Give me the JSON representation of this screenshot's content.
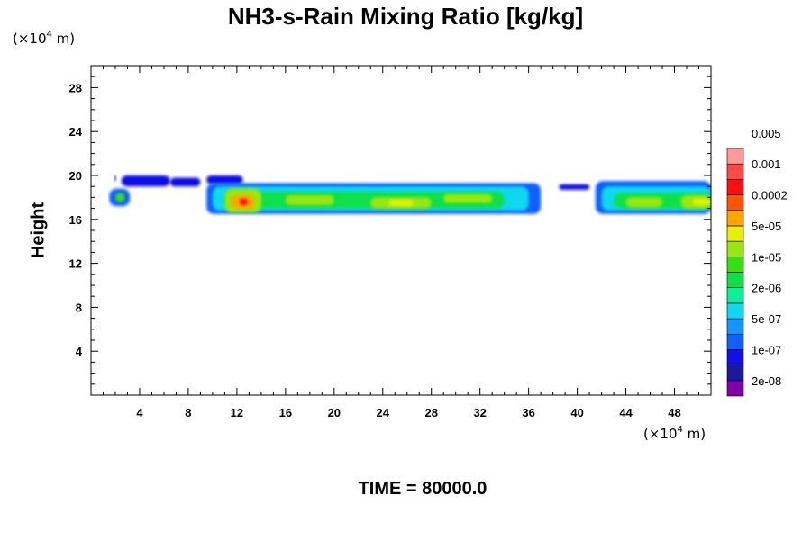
{
  "chart_data": {
    "type": "heatmap",
    "title": "NH3-s-Rain Mixing Ratio [kg/kg]",
    "ylabel": "Height",
    "y_unit": {
      "prefix": "(×10",
      "exp": "4",
      "suffix": " m)"
    },
    "x_unit": {
      "prefix": "(×10",
      "exp": "4",
      "suffix": " m)"
    },
    "x_ticks": [
      4,
      8,
      12,
      16,
      20,
      24,
      28,
      32,
      36,
      40,
      44,
      48
    ],
    "y_ticks": [
      4,
      8,
      12,
      16,
      20,
      24,
      28
    ],
    "xlim": [
      0,
      51
    ],
    "ylim": [
      0,
      30
    ],
    "grid": false,
    "colorbar": {
      "colors": [
        "#7f00aa",
        "#1a1aa0",
        "#1010e8",
        "#1060ff",
        "#1496ff",
        "#10d8ee",
        "#10ee9a",
        "#10e04a",
        "#36e010",
        "#9ae610",
        "#e6f000",
        "#ffa400",
        "#ff5500",
        "#ff1010",
        "#ff4848",
        "#ff9a9a"
      ],
      "labels": [
        "2e-08",
        "1e-07",
        "5e-07",
        "2e-06",
        "1e-05",
        "5e-05",
        "0.0002",
        "0.001",
        "0.005"
      ]
    },
    "regions": [
      {
        "x0": 1.9,
        "x1": 2.1,
        "y0": 19.5,
        "y1": 20.0,
        "level": 2
      },
      {
        "x0": 2.5,
        "x1": 6.5,
        "y0": 19.0,
        "y1": 20.0,
        "level": 2
      },
      {
        "x0": 6.5,
        "x1": 9.0,
        "y0": 19.0,
        "y1": 19.8,
        "level": 2
      },
      {
        "x0": 9.5,
        "x1": 12.5,
        "y0": 19.2,
        "y1": 20.0,
        "level": 2
      },
      {
        "x0": 1.5,
        "x1": 3.2,
        "y0": 17.2,
        "y1": 18.8,
        "level": 3
      },
      {
        "x0": 2.0,
        "x1": 2.8,
        "y0": 17.6,
        "y1": 18.4,
        "level": 8
      },
      {
        "x0": 9.5,
        "x1": 37.0,
        "y0": 16.5,
        "y1": 19.3,
        "level": 3
      },
      {
        "x0": 10.0,
        "x1": 36.0,
        "y0": 16.8,
        "y1": 19.0,
        "level": 5
      },
      {
        "x0": 11.0,
        "x1": 34.0,
        "y0": 17.0,
        "y1": 18.5,
        "level": 7
      },
      {
        "x0": 11.0,
        "x1": 14.0,
        "y0": 16.6,
        "y1": 18.8,
        "level": 9
      },
      {
        "x0": 11.5,
        "x1": 13.5,
        "y0": 17.0,
        "y1": 18.2,
        "level": 11
      },
      {
        "x0": 12.2,
        "x1": 12.9,
        "y0": 17.3,
        "y1": 17.9,
        "level": 13
      },
      {
        "x0": 16.0,
        "x1": 20.0,
        "y0": 17.3,
        "y1": 18.2,
        "level": 9
      },
      {
        "x0": 23.0,
        "x1": 28.0,
        "y0": 17.0,
        "y1": 18.0,
        "level": 9
      },
      {
        "x0": 24.5,
        "x1": 26.5,
        "y0": 17.2,
        "y1": 17.8,
        "level": 10
      },
      {
        "x0": 29.0,
        "x1": 33.0,
        "y0": 17.5,
        "y1": 18.3,
        "level": 9
      },
      {
        "x0": 38.5,
        "x1": 41.0,
        "y0": 18.7,
        "y1": 19.2,
        "level": 2
      },
      {
        "x0": 41.5,
        "x1": 51.0,
        "y0": 16.5,
        "y1": 19.5,
        "level": 3
      },
      {
        "x0": 42.0,
        "x1": 51.0,
        "y0": 16.8,
        "y1": 19.0,
        "level": 5
      },
      {
        "x0": 43.0,
        "x1": 51.0,
        "y0": 17.0,
        "y1": 18.4,
        "level": 7
      },
      {
        "x0": 44.0,
        "x1": 47.0,
        "y0": 17.1,
        "y1": 18.0,
        "level": 9
      },
      {
        "x0": 48.5,
        "x1": 51.0,
        "y0": 17.0,
        "y1": 18.2,
        "level": 9
      },
      {
        "x0": 49.5,
        "x1": 51.0,
        "y0": 17.3,
        "y1": 17.9,
        "level": 10
      }
    ]
  },
  "footer": {
    "time": "TIME = 80000.0"
  }
}
